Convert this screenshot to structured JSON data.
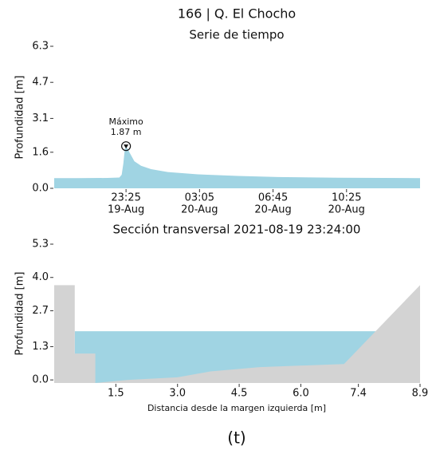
{
  "title": "166 | Q. El Chocho",
  "caption": "(t)",
  "chart_data": [
    {
      "type": "area",
      "title": "Serie de tiempo",
      "ylabel": "Profundidad [m]",
      "x": [
        "19-Aug 19:50",
        "19-Aug 21:00",
        "19-Aug 22:30",
        "19-Aug 23:05",
        "19-Aug 23:12",
        "19-Aug 23:17",
        "19-Aug 23:21",
        "19-Aug 23:25",
        "19-Aug 23:35",
        "19-Aug 23:50",
        "20-Aug 00:10",
        "20-Aug 00:40",
        "20-Aug 01:30",
        "20-Aug 03:00",
        "20-Aug 05:00",
        "20-Aug 07:00",
        "20-Aug 10:00",
        "20-Aug 14:05"
      ],
      "values": [
        0.45,
        0.45,
        0.46,
        0.48,
        0.6,
        1.1,
        1.7,
        1.87,
        1.6,
        1.2,
        1.0,
        0.85,
        0.72,
        0.62,
        0.55,
        0.5,
        0.47,
        0.45
      ],
      "color": "#a0d4e3",
      "annotation": {
        "text": "Máximo",
        "x": "19-Aug 23:25",
        "value": 1.87,
        "value_label": "1.87 m"
      },
      "xlim": [
        "19-Aug 19:50",
        "20-Aug 14:05"
      ],
      "xticks": [
        {
          "value": "19-Aug 23:25",
          "label": [
            "23:25",
            "19-Aug"
          ]
        },
        {
          "value": "20-Aug 03:05",
          "label": [
            "03:05",
            "20-Aug"
          ]
        },
        {
          "value": "20-Aug 06:45",
          "label": [
            "06:45",
            "20-Aug"
          ]
        },
        {
          "value": "20-Aug 10:25",
          "label": [
            "10:25",
            "20-Aug"
          ]
        }
      ],
      "ylim": [
        0,
        6.3
      ],
      "yticks": [
        {
          "value": 0,
          "label": "0.0"
        },
        1.6,
        3.1,
        4.7,
        6.3
      ]
    },
    {
      "type": "area",
      "title": "Sección transversal 2021-08-19 23:24:00",
      "ylabel": "Profundidad [m]",
      "xlabel": "Distancia desde la margen izquierda [m]",
      "series": [
        {
          "color": "#a0d4e3",
          "x": [
            0.5,
            7.82
          ],
          "values": [
            1.9,
            1.9
          ]
        },
        {
          "color": "#d3d3d3",
          "x": [
            0,
            0.5,
            0.5,
            1.0,
            1.0,
            1.8,
            3.0,
            3.8,
            5.0,
            7.05,
            8.9
          ],
          "values": [
            3.7,
            3.7,
            1.03,
            1.03,
            -0.12,
            0.0,
            0.1,
            0.33,
            0.5,
            0.62,
            3.7
          ]
        }
      ],
      "xlim": [
        0,
        8.9
      ],
      "xticks": [
        1.5,
        {
          "value": 3,
          "label": "3.0"
        },
        4.5,
        {
          "value": 6,
          "label": "6.0"
        },
        7.4,
        8.9
      ],
      "ylim": [
        -0.12,
        5.3
      ],
      "yticks": [
        {
          "value": 0,
          "label": "0.0"
        },
        1.3,
        2.7,
        {
          "value": 4,
          "label": "4.0"
        },
        5.3
      ]
    }
  ]
}
